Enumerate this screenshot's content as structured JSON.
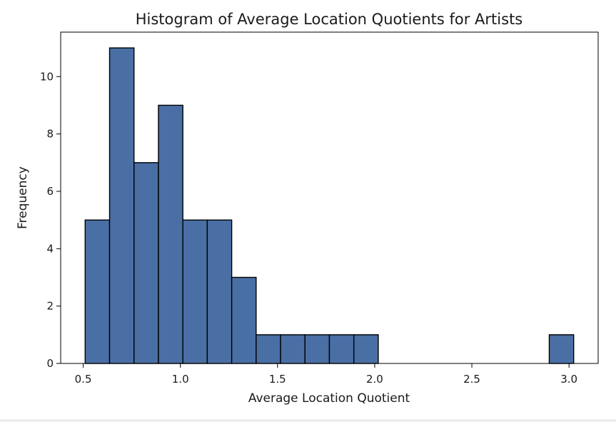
{
  "chart_data": {
    "type": "bar",
    "title": "Histogram of Average Location Quotients for Artists",
    "xlabel": "Average Location Quotient",
    "ylabel": "Frequency",
    "bin_edges": [
      0.51,
      0.6357,
      0.7614,
      0.8871,
      1.0128,
      1.1385,
      1.2642,
      1.3899,
      1.5156,
      1.6413,
      1.767,
      1.8927,
      2.0184,
      2.1441,
      2.2698,
      2.3955,
      2.5212,
      2.6469,
      2.7726,
      2.8983,
      3.024
    ],
    "values": [
      5,
      11,
      7,
      9,
      5,
      5,
      3,
      1,
      1,
      1,
      1,
      1,
      0,
      0,
      0,
      0,
      0,
      0,
      0,
      1
    ],
    "xticks": [
      0.5,
      1.0,
      1.5,
      2.0,
      2.5,
      3.0
    ],
    "xtick_labels": [
      "0.5",
      "1.0",
      "1.5",
      "2.0",
      "2.5",
      "3.0"
    ],
    "yticks": [
      0,
      2,
      4,
      6,
      8,
      10
    ],
    "ytick_labels": [
      "0",
      "2",
      "4",
      "6",
      "8",
      "10"
    ],
    "xlim": [
      0.384,
      3.15
    ],
    "ylim": [
      0,
      11.55
    ],
    "grid": false,
    "colors": {
      "bar_fill": "#4a6fa5",
      "bar_edge": "#000000",
      "axes": "#000000",
      "text": "#1a1a1a"
    }
  }
}
